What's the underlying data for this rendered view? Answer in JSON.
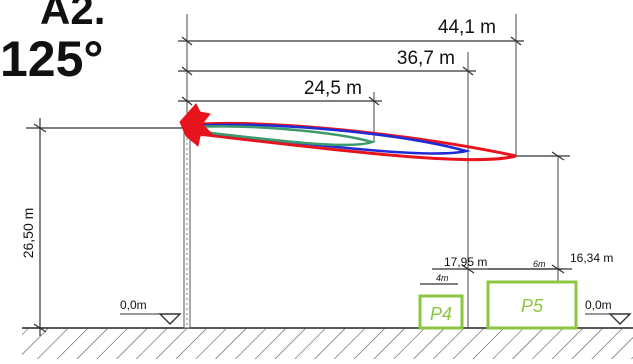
{
  "title_line1": "A2.",
  "title_line2": "125°",
  "dimensions": {
    "dim1": "44,1 m",
    "dim2": "36,7 m",
    "dim3": "24,5 m",
    "height": "26,50 m",
    "d_p4": "17,95 m",
    "d_p5": "16,34 m",
    "w_p4": "4m",
    "w_p5": "6m",
    "level_left": "0,0m",
    "level_right": "0,0m"
  },
  "boxes": {
    "p4": "P4",
    "p5": "P5"
  },
  "colors": {
    "plume_red": "#e8141c",
    "plume_blue": "#1f2bd6",
    "plume_green": "#3e9a6a",
    "box_green": "#8cc63f",
    "line": "#333333"
  }
}
